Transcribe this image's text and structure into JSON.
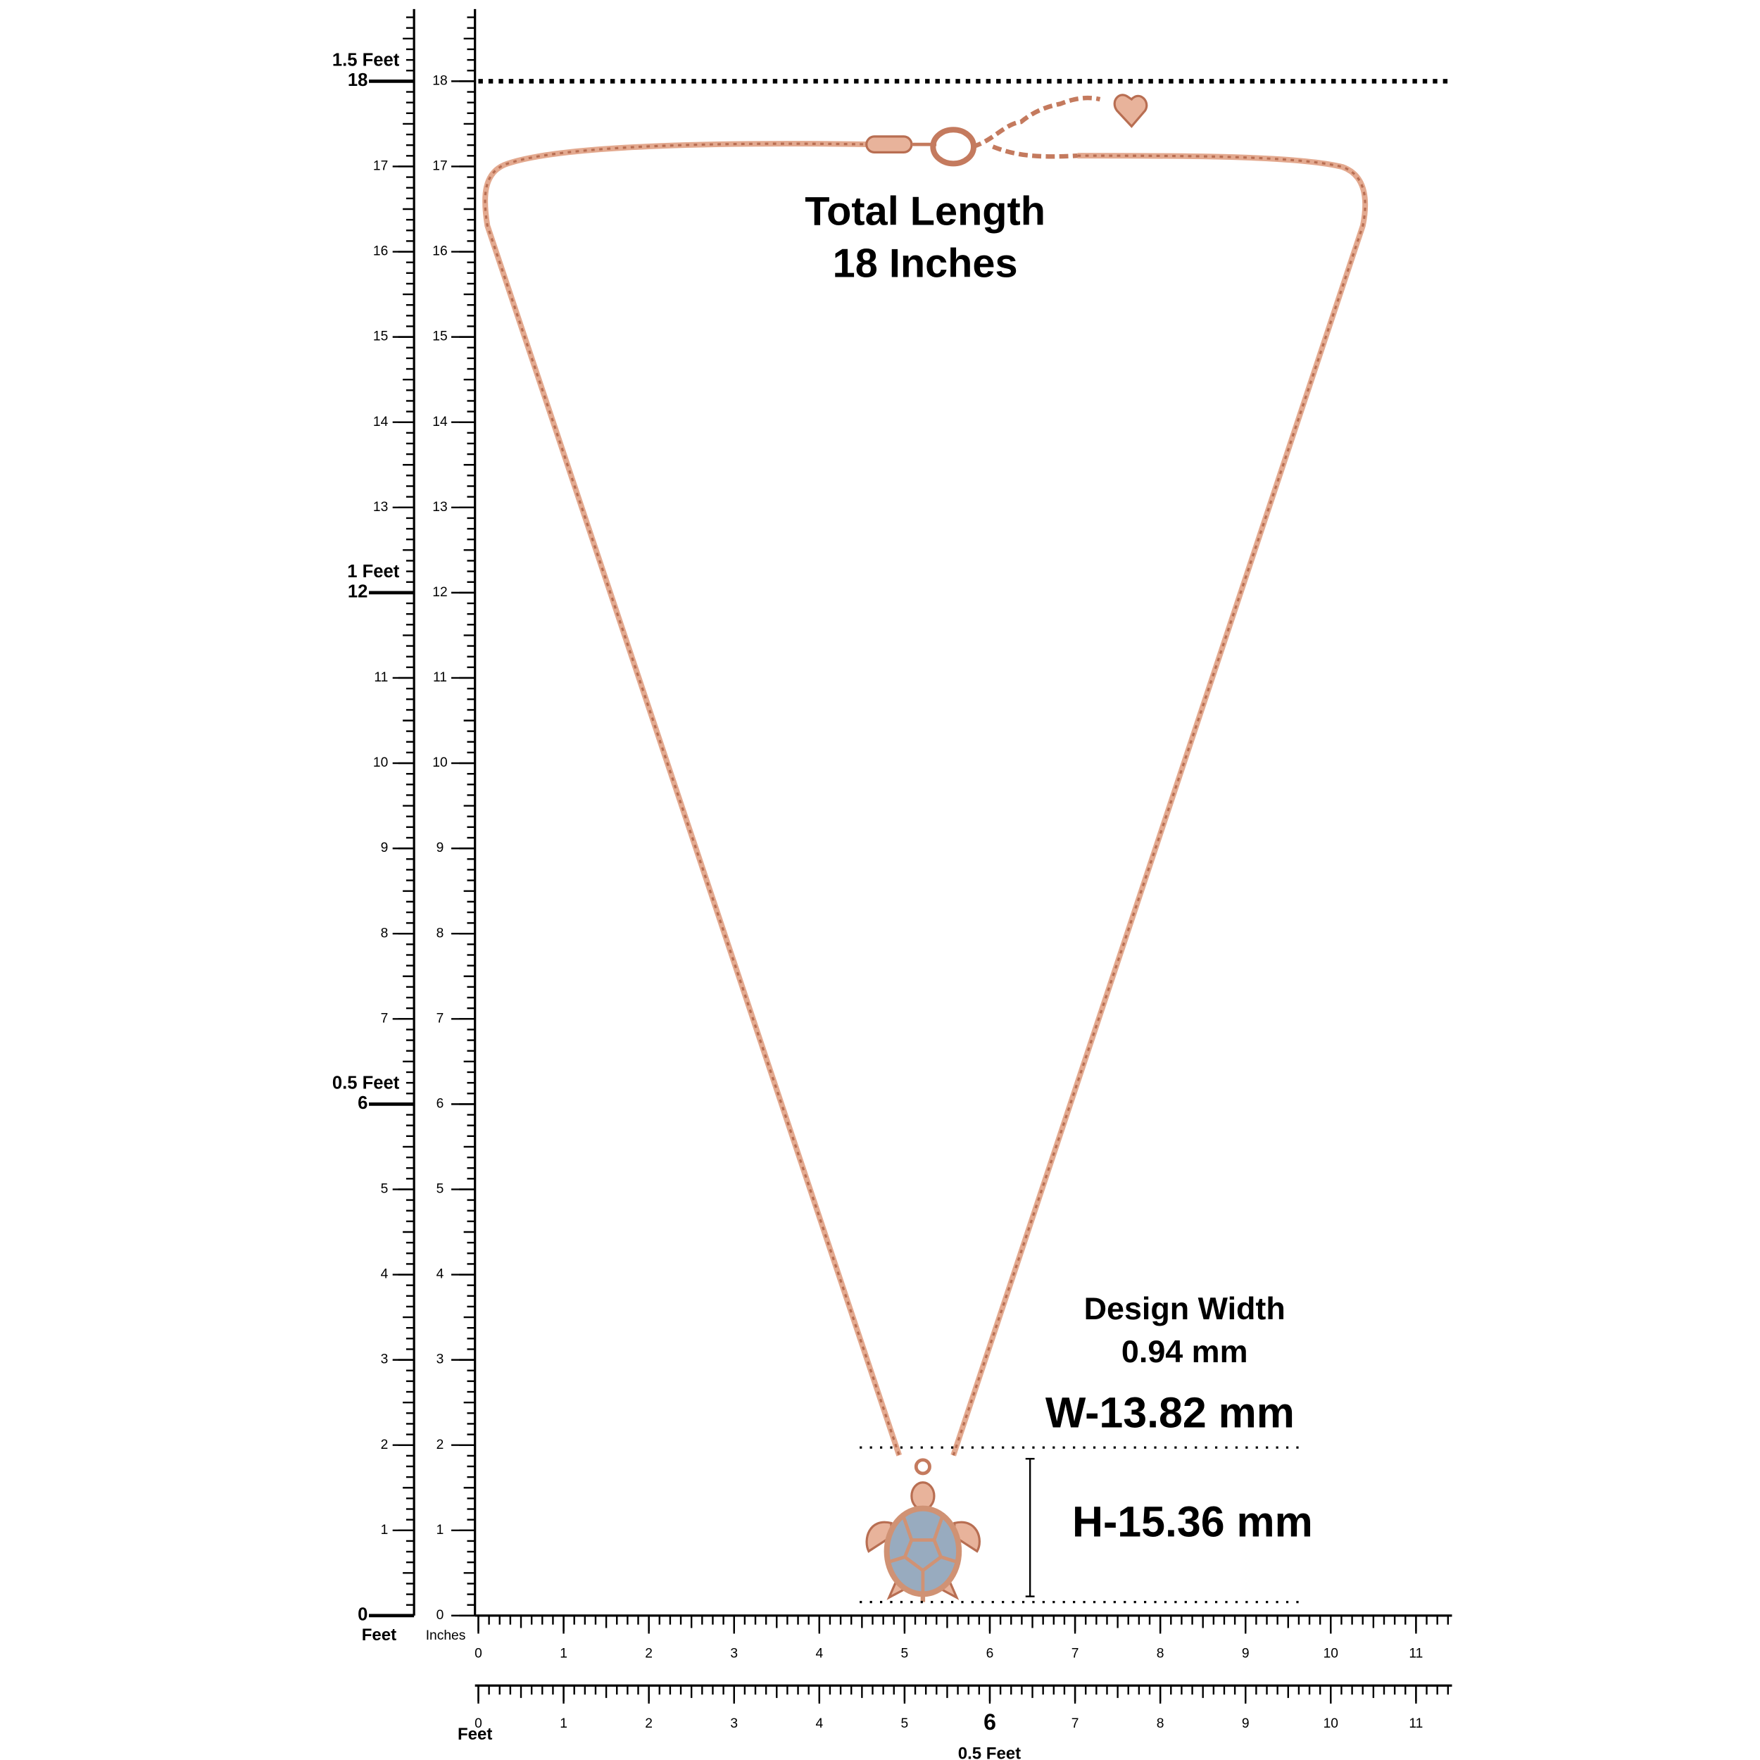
{
  "headline": {
    "line1": "Total Length",
    "line2": "18 Inches"
  },
  "design_width": {
    "label": "Design Width",
    "value": "0.94 mm"
  },
  "width_label": "W-13.82 mm",
  "height_label": "H-15.36 mm",
  "left_ruler": {
    "feet_scale": [
      0,
      1,
      2,
      3,
      4,
      5,
      6,
      7,
      8,
      9,
      10,
      11,
      12,
      13,
      14,
      15,
      16,
      17,
      18
    ],
    "feet_marks": [
      "0.5 Feet",
      "1 Feet",
      "1.5 Feet"
    ],
    "feet_unit": "Feet",
    "inch_scale": [
      0,
      1,
      2,
      3,
      4,
      5,
      6,
      7,
      8,
      9,
      10,
      11,
      12,
      13,
      14,
      15,
      16,
      17,
      18
    ],
    "inch_unit": "Inches"
  },
  "bottom_ruler": {
    "inch_scale": [
      0,
      1,
      2,
      3,
      4,
      5,
      6,
      7,
      8,
      9,
      10,
      11
    ]
  },
  "bottom_feet_ruler": {
    "scale": [
      0,
      1,
      2,
      3,
      4,
      5,
      6,
      7,
      8,
      9,
      10,
      11
    ],
    "unit": "Feet",
    "mark": "0.5 Feet"
  }
}
